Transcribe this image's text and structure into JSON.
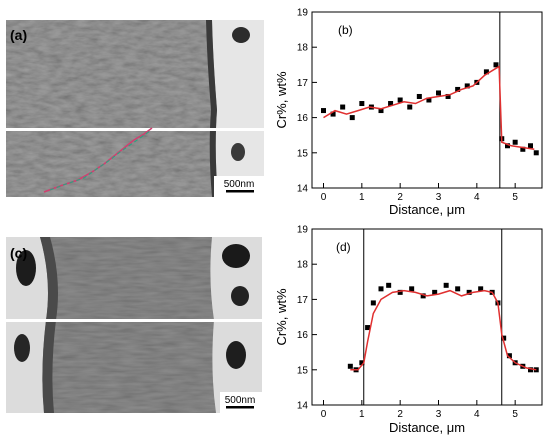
{
  "panel_labels": {
    "a": "(a)",
    "b": "(b)",
    "c": "(c)",
    "d": "(d)"
  },
  "scale_bars": {
    "top": "500nm",
    "bottom": "500nm"
  },
  "colors": {
    "data_points": "#000000",
    "smoothed_fit": "#e03030",
    "line_scan_trace": "#d04070",
    "line_scan_trace_alt": "#30a080",
    "micrograph_fill": "#6e6e6e",
    "micrograph_light": "#e8e8e8"
  },
  "chart_data": [
    {
      "panel": "(b)",
      "type": "scatter",
      "xlabel": "Distance, μm",
      "ylabel": "Cr%, wt%",
      "xlim": [
        -0.3,
        5.7
      ],
      "ylim": [
        14,
        19
      ],
      "x_ticks": [
        "0",
        "1",
        "2",
        "3",
        "4",
        "5"
      ],
      "y_ticks": [
        "14",
        "15",
        "16",
        "17",
        "18",
        "19"
      ],
      "boundary_lines_x": [
        4.6
      ],
      "series": [
        {
          "style": "scatter",
          "marker": "square",
          "x": [
            0.0,
            0.25,
            0.5,
            0.75,
            1.0,
            1.25,
            1.5,
            1.75,
            2.0,
            2.25,
            2.5,
            2.75,
            3.0,
            3.25,
            3.5,
            3.75,
            4.0,
            4.25,
            4.5,
            4.65,
            4.8,
            5.0,
            5.2,
            5.4,
            5.55
          ],
          "y": [
            16.2,
            16.1,
            16.3,
            16.0,
            16.4,
            16.3,
            16.2,
            16.4,
            16.5,
            16.3,
            16.6,
            16.5,
            16.7,
            16.6,
            16.8,
            16.9,
            17.0,
            17.3,
            17.5,
            15.4,
            15.2,
            15.3,
            15.1,
            15.2,
            15.0
          ]
        },
        {
          "style": "line",
          "fit": "smoothed",
          "x": [
            0.0,
            0.3,
            0.6,
            0.9,
            1.2,
            1.5,
            1.8,
            2.1,
            2.4,
            2.7,
            3.0,
            3.3,
            3.6,
            3.9,
            4.2,
            4.5,
            4.58,
            4.65,
            4.9,
            5.2,
            5.5
          ],
          "y": [
            16.0,
            16.2,
            16.1,
            16.2,
            16.3,
            16.25,
            16.35,
            16.45,
            16.4,
            16.55,
            16.6,
            16.65,
            16.8,
            16.9,
            17.2,
            17.4,
            17.45,
            15.3,
            15.2,
            15.15,
            15.1
          ]
        }
      ]
    },
    {
      "panel": "(d)",
      "type": "scatter",
      "xlabel": "Distance, μm",
      "ylabel": "Cr%, wt%",
      "xlim": [
        -0.3,
        5.7
      ],
      "ylim": [
        14,
        19
      ],
      "x_ticks": [
        "0",
        "1",
        "2",
        "3",
        "4",
        "5"
      ],
      "y_ticks": [
        "14",
        "15",
        "16",
        "17",
        "18",
        "19"
      ],
      "boundary_lines_x": [
        1.05,
        4.65
      ],
      "series": [
        {
          "style": "scatter",
          "marker": "square",
          "x": [
            0.7,
            0.85,
            1.0,
            1.15,
            1.3,
            1.5,
            1.7,
            2.0,
            2.3,
            2.6,
            2.9,
            3.2,
            3.5,
            3.8,
            4.1,
            4.4,
            4.55,
            4.7,
            4.85,
            5.0,
            5.2,
            5.4,
            5.55
          ],
          "y": [
            15.1,
            15.0,
            15.2,
            16.2,
            16.9,
            17.3,
            17.4,
            17.2,
            17.3,
            17.1,
            17.2,
            17.4,
            17.3,
            17.2,
            17.3,
            17.2,
            16.9,
            15.9,
            15.4,
            15.2,
            15.1,
            15.0,
            15.0
          ]
        },
        {
          "style": "line",
          "fit": "smoothed",
          "x": [
            0.7,
            0.9,
            1.05,
            1.15,
            1.3,
            1.5,
            1.8,
            2.1,
            2.4,
            2.7,
            3.0,
            3.3,
            3.6,
            3.9,
            4.2,
            4.4,
            4.55,
            4.65,
            4.8,
            5.0,
            5.3,
            5.55
          ],
          "y": [
            15.0,
            15.0,
            15.2,
            15.8,
            16.6,
            17.0,
            17.2,
            17.25,
            17.2,
            17.1,
            17.15,
            17.25,
            17.1,
            17.2,
            17.25,
            17.2,
            16.9,
            16.0,
            15.4,
            15.2,
            15.05,
            15.0
          ]
        }
      ]
    }
  ]
}
